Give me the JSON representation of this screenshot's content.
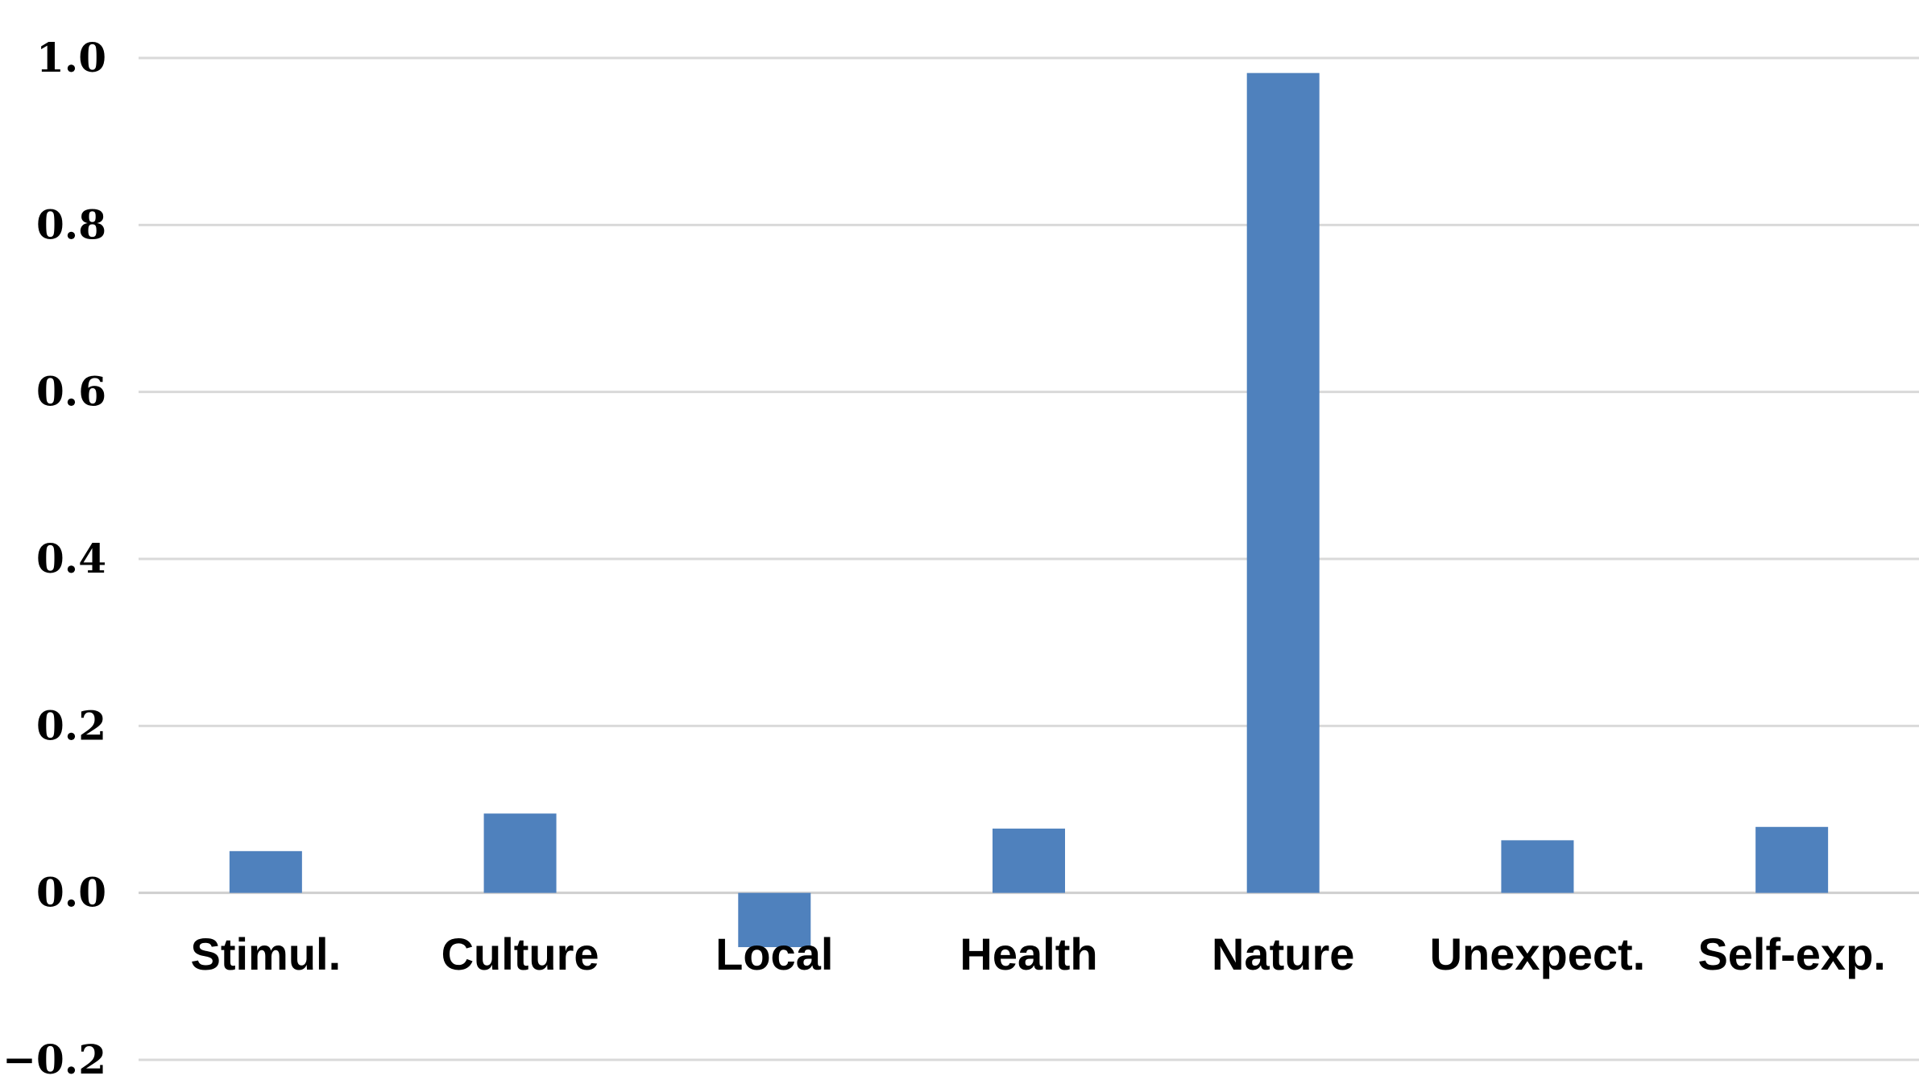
{
  "chart_data": {
    "type": "bar",
    "title": "",
    "xlabel": "",
    "ylabel": "",
    "categories": [
      "Stimul.",
      "Culture",
      "Local",
      "Health",
      "Nature",
      "Unexpect.",
      "Self-exp."
    ],
    "values": [
      0.05,
      0.095,
      -0.065,
      0.077,
      0.982,
      0.063,
      0.079
    ],
    "ylim": [
      -0.2,
      1.0
    ],
    "yticks": [
      1.0,
      0.8,
      0.6,
      0.4,
      0.2,
      0.0,
      -0.2
    ],
    "ytick_labels": [
      "1.0",
      "0.8",
      "0.6",
      "0.4",
      "0.2",
      "0.0",
      "−0.2"
    ],
    "grid": true,
    "legend": "none",
    "bar_color": "#4f81bd"
  }
}
